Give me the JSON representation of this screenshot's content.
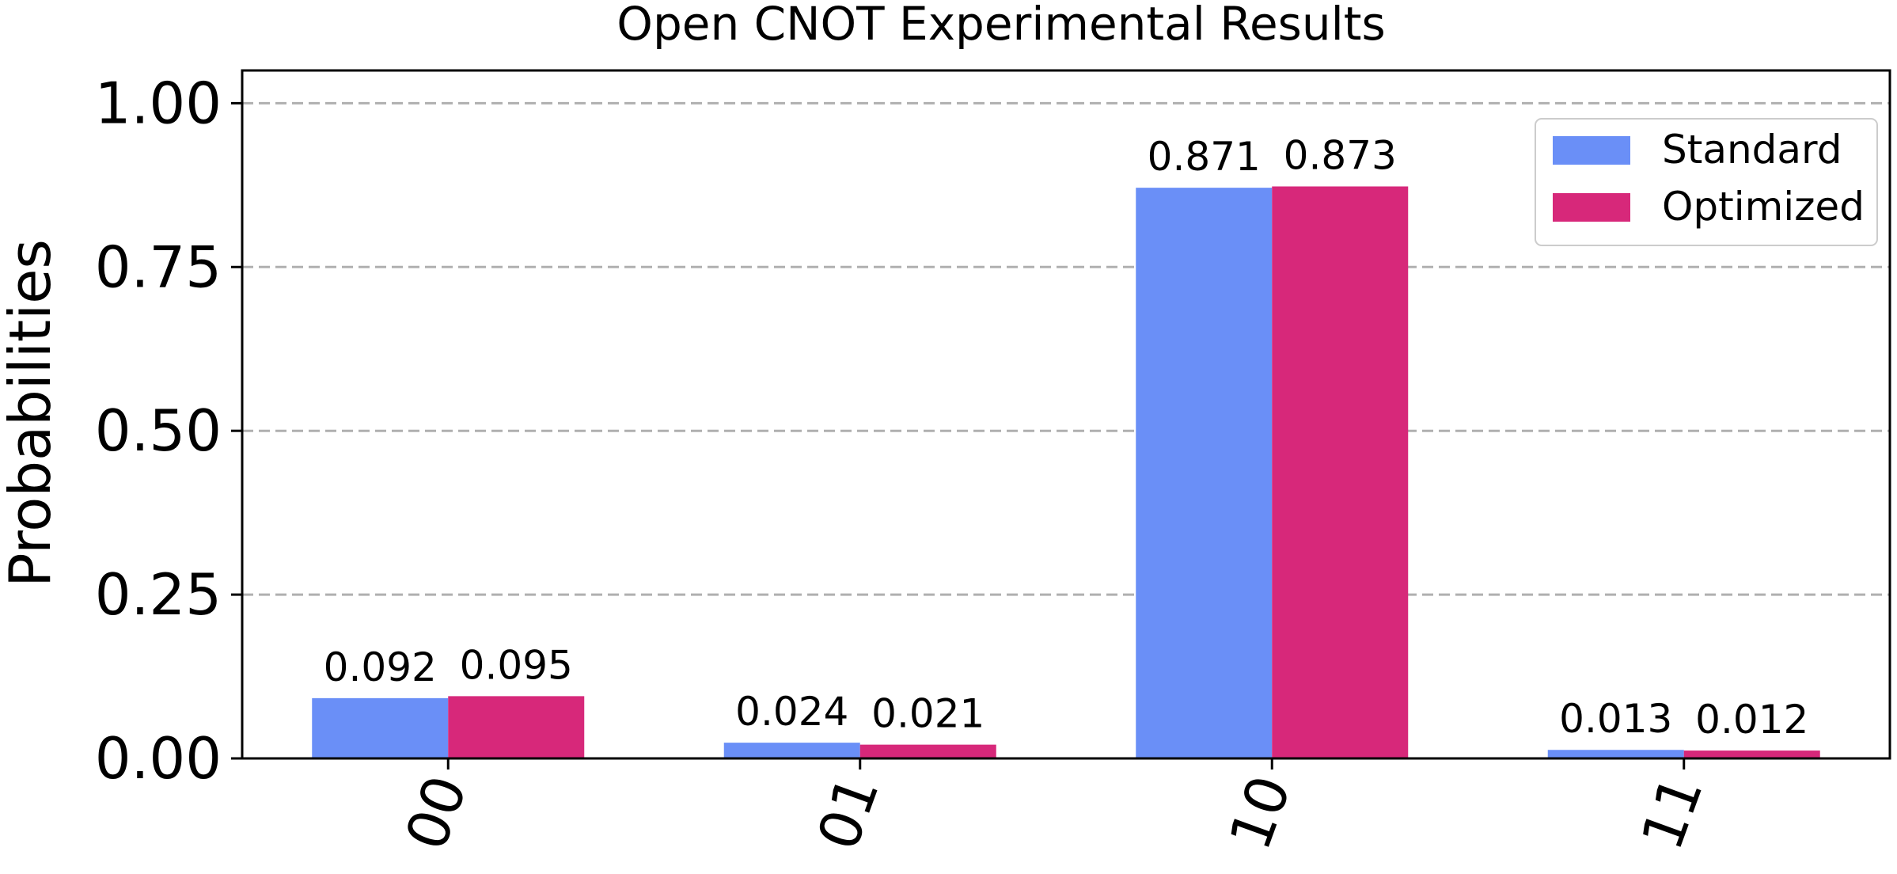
{
  "chart_data": {
    "type": "bar",
    "title": "Open CNOT Experimental Results",
    "xlabel": "",
    "ylabel": "Probabilities",
    "categories": [
      "00",
      "01",
      "10",
      "11"
    ],
    "series": [
      {
        "name": "Standard",
        "color": "#6a8ff7",
        "values": [
          0.092,
          0.024,
          0.871,
          0.013
        ],
        "labels": [
          "0.092",
          "0.024",
          "0.871",
          "0.013"
        ]
      },
      {
        "name": "Optimized",
        "color": "#d7287a",
        "values": [
          0.095,
          0.021,
          0.873,
          0.012
        ],
        "labels": [
          "0.095",
          "0.021",
          "0.873",
          "0.012"
        ]
      }
    ],
    "ylim": [
      0,
      1.05
    ],
    "yticks": [
      0,
      0.25,
      0.5,
      0.75,
      1.0
    ],
    "ytick_labels": [
      "0.00",
      "0.25",
      "0.50",
      "0.75",
      "1.00"
    ],
    "grid": "horizontal dashed",
    "grid_color": "#b0b0b0",
    "legend_position": "top-right"
  }
}
